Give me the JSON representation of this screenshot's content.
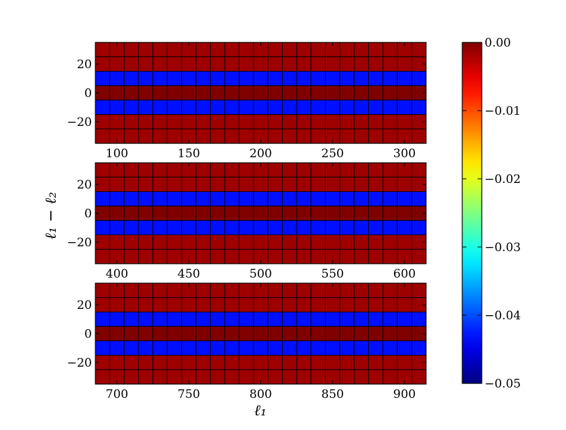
{
  "chart_data": {
    "type": "heatmap",
    "xlabel": "ℓ₁",
    "ylabel": "ℓ₁ − ℓ₂",
    "grid": true,
    "colormap": "jet",
    "colorbar": {
      "min": -0.05,
      "max": 0.0,
      "tick_values": [
        0.0,
        -0.01,
        -0.02,
        -0.03,
        -0.04,
        -0.05
      ],
      "tick_labels": [
        "0.00",
        "−0.01",
        "−0.02",
        "−0.03",
        "−0.04",
        "−0.05"
      ]
    },
    "cell_width": 10,
    "cell_height": 10,
    "row_centers": [
      30,
      20,
      10,
      0,
      -10,
      -20,
      -30
    ],
    "row_values": [
      -0.0015,
      -0.0015,
      -0.043,
      0.0,
      -0.043,
      -0.0015,
      -0.0015
    ],
    "panels": [
      {
        "xlim": [
          85,
          315
        ],
        "ylim": [
          -35,
          35
        ],
        "x_ticks": [
          100,
          150,
          200,
          250,
          300
        ],
        "x_tick_labels": [
          "100",
          "150",
          "200",
          "250",
          "300"
        ],
        "y_ticks": [
          20,
          0,
          -20
        ],
        "y_tick_labels": [
          "20",
          "0",
          "−20"
        ]
      },
      {
        "xlim": [
          385,
          615
        ],
        "ylim": [
          -35,
          35
        ],
        "x_ticks": [
          400,
          450,
          500,
          550,
          600
        ],
        "x_tick_labels": [
          "400",
          "450",
          "500",
          "550",
          "600"
        ],
        "y_ticks": [
          20,
          0,
          -20
        ],
        "y_tick_labels": [
          "20",
          "0",
          "−20"
        ]
      },
      {
        "xlim": [
          685,
          915
        ],
        "ylim": [
          -35,
          35
        ],
        "x_ticks": [
          700,
          750,
          800,
          850,
          900
        ],
        "x_tick_labels": [
          "700",
          "750",
          "800",
          "850",
          "900"
        ],
        "y_ticks": [
          20,
          0,
          -20
        ],
        "y_tick_labels": [
          "20",
          "0",
          "−20"
        ]
      }
    ]
  }
}
